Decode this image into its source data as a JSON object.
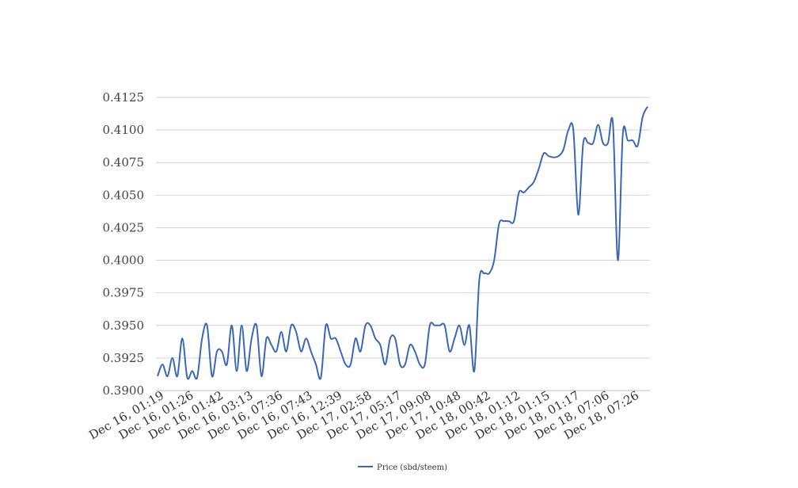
{
  "chart_data": {
    "type": "line",
    "title": "",
    "xlabel": "",
    "ylabel": "",
    "ylim": [
      0.39,
      0.4125
    ],
    "y_ticks": [
      "0.3900",
      "0.3925",
      "0.3950",
      "0.3975",
      "0.4000",
      "0.4025",
      "0.4050",
      "0.4075",
      "0.4100",
      "0.4125"
    ],
    "x_tick_labels": [
      "Dec 16, 01:19",
      "Dec 16, 01:26",
      "Dec 16, 01:42",
      "Dec 16, 03:13",
      "Dec 16, 07:36",
      "Dec 16, 07:43",
      "Dec 16, 12:39",
      "Dec 17, 02:58",
      "Dec 17, 05:17",
      "Dec 17, 09:08",
      "Dec 17, 10:48",
      "Dec 18, 00:42",
      "Dec 18, 01:12",
      "Dec 18, 01:15",
      "Dec 18, 01:17",
      "Dec 18, 07:06",
      "Dec 18, 07:26"
    ],
    "grid": true,
    "legend_position": "bottom-center",
    "line_color": "#3a67b8",
    "series": [
      {
        "name": "Price (sbd/steem)",
        "values": [
          0.3911,
          0.392,
          0.3911,
          0.3925,
          0.3911,
          0.394,
          0.391,
          0.3915,
          0.391,
          0.394,
          0.395,
          0.3911,
          0.393,
          0.393,
          0.392,
          0.395,
          0.3915,
          0.395,
          0.3915,
          0.394,
          0.395,
          0.3911,
          0.394,
          0.3935,
          0.393,
          0.3945,
          0.393,
          0.395,
          0.3945,
          0.393,
          0.394,
          0.393,
          0.392,
          0.391,
          0.395,
          0.394,
          0.394,
          0.393,
          0.392,
          0.392,
          0.394,
          0.393,
          0.395,
          0.395,
          0.394,
          0.3935,
          0.392,
          0.394,
          0.394,
          0.392,
          0.392,
          0.3935,
          0.393,
          0.392,
          0.392,
          0.395,
          0.395,
          0.395,
          0.395,
          0.393,
          0.394,
          0.395,
          0.3935,
          0.395,
          0.3915,
          0.3985,
          0.399,
          0.399,
          0.4,
          0.4028,
          0.403,
          0.403,
          0.403,
          0.4052,
          0.4052,
          0.4056,
          0.406,
          0.407,
          0.4082,
          0.408,
          0.4079,
          0.408,
          0.4085,
          0.41,
          0.41,
          0.4035,
          0.409,
          0.409,
          0.409,
          0.4104,
          0.409,
          0.409,
          0.4105,
          0.4,
          0.4097,
          0.4092,
          0.4092,
          0.4088,
          0.411,
          0.4118
        ]
      }
    ]
  }
}
